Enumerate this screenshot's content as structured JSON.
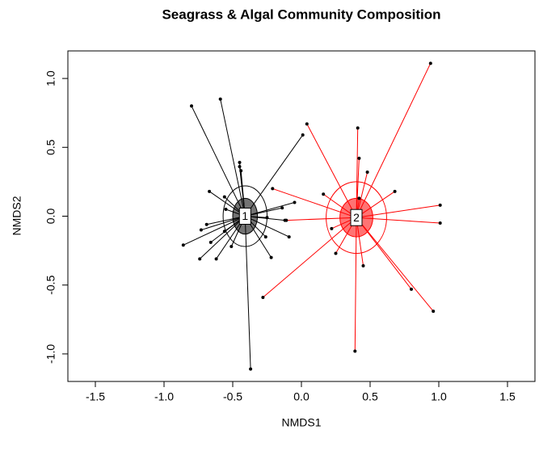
{
  "chart_data": {
    "type": "scatter",
    "title": "Seagrass & Algal Community Composition",
    "x_label": "NMDS1",
    "y_label": "NMDS2",
    "xlim": [
      -1.7,
      1.7
    ],
    "ylim": [
      -1.2,
      1.2
    ],
    "xticks": [
      -1.5,
      {
        "value": -1,
        "label": "-1.0"
      },
      -0.5,
      {
        "value": 0,
        "label": "0.0"
      },
      0.5,
      {
        "value": 1,
        "label": "1.0"
      },
      1.5
    ],
    "yticks": [
      {
        "value": -1,
        "label": "-1.0"
      },
      -0.5,
      {
        "value": 0,
        "label": "0.0"
      },
      0.5,
      {
        "value": 1,
        "label": "1.0"
      }
    ],
    "grid": false,
    "series": [
      {
        "name": "1",
        "color": "#000000",
        "centroid": [
          -0.41,
          0.0
        ],
        "ellipses": [
          [
            0.16,
            0.22
          ],
          [
            0.09,
            0.13
          ]
        ],
        "x": [
          -0.8,
          -0.59,
          0.01,
          -0.45,
          -0.45,
          -0.44,
          -0.67,
          -0.56,
          -0.05,
          -0.14,
          -0.55,
          -0.69,
          -0.73,
          -0.12,
          -0.25,
          -0.09,
          -0.56,
          -0.66,
          -0.86,
          -0.74,
          -0.62,
          -0.51,
          -0.26,
          -0.22,
          -0.37
        ],
        "values": [
          0.8,
          0.85,
          0.59,
          0.39,
          0.36,
          0.33,
          0.18,
          0.14,
          0.1,
          0.06,
          0.05,
          -0.06,
          -0.1,
          -0.03,
          -0.01,
          -0.15,
          -0.11,
          -0.19,
          -0.21,
          -0.31,
          -0.31,
          -0.22,
          -0.15,
          -0.3,
          -1.11
        ]
      },
      {
        "name": "2",
        "color": "#ff0000",
        "centroid": [
          0.4,
          -0.01
        ],
        "ellipses": [
          [
            0.22,
            0.26
          ],
          [
            0.12,
            0.14
          ]
        ],
        "x": [
          0.94,
          0.04,
          0.41,
          0.42,
          0.48,
          -0.21,
          0.16,
          0.68,
          1.01,
          0.42,
          1.01,
          -0.11,
          0.22,
          0.25,
          0.45,
          0.8,
          0.96,
          -0.28,
          0.39,
          0.41
        ],
        "values": [
          1.11,
          0.67,
          0.64,
          0.42,
          0.32,
          0.2,
          0.16,
          0.18,
          0.08,
          0.13,
          -0.05,
          -0.03,
          -0.09,
          -0.27,
          -0.36,
          -0.53,
          -0.69,
          -0.59,
          -0.98,
          -0.01
        ]
      }
    ]
  }
}
